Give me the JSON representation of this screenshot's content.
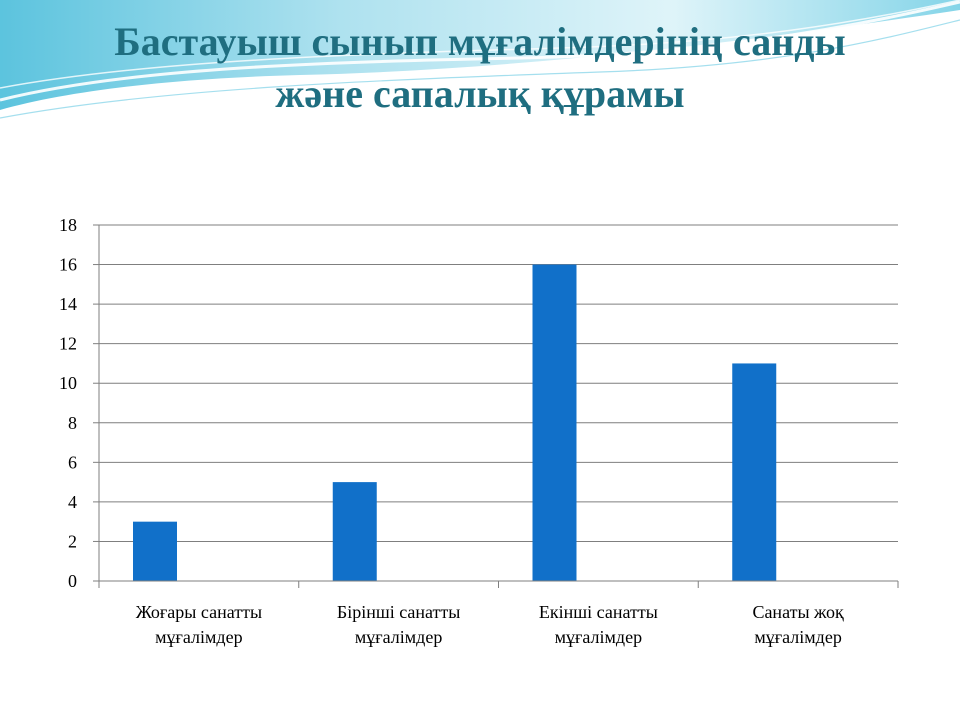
{
  "slide": {
    "title_line1": "Бастауыш сынып мұғалімдерінің санды",
    "title_line2": "және сапалық құрамы"
  },
  "colors": {
    "title": "#1f6e80",
    "bar": "#1170c9",
    "grid": "#7f7f7f",
    "wave_light": "#bfe9f4",
    "wave_mid": "#5cc8e2"
  },
  "chart_data": {
    "type": "bar",
    "categories": [
      [
        "Жоғары санатты",
        "мұғалімдер"
      ],
      [
        "Бірінші санатты",
        "мұғалімдер"
      ],
      [
        "Екінші санатты",
        "мұғалімдер"
      ],
      [
        "Санаты жоқ",
        "мұғалімдер"
      ]
    ],
    "values": [
      3,
      5,
      16,
      11
    ],
    "ylim": [
      0,
      18
    ],
    "yticks": [
      0,
      2,
      4,
      6,
      8,
      10,
      12,
      14,
      16,
      18
    ],
    "grid": true,
    "legend": "none",
    "title": "",
    "xlabel": "",
    "ylabel": ""
  }
}
